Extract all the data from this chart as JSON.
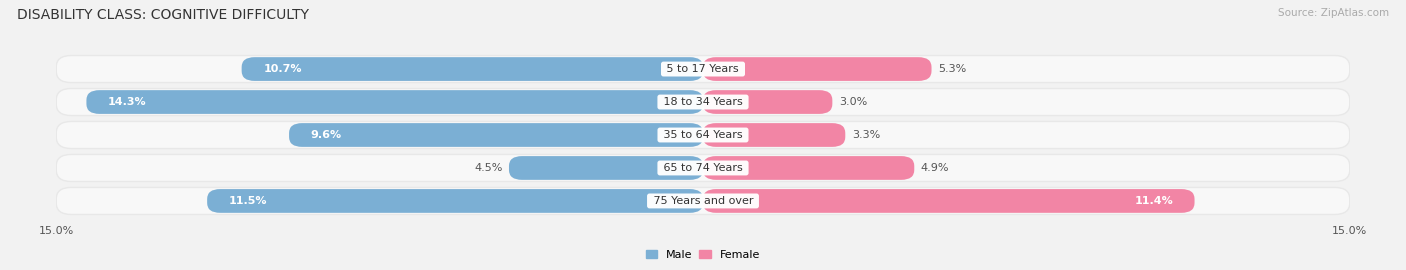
{
  "title": "DISABILITY CLASS: COGNITIVE DIFFICULTY",
  "source": "Source: ZipAtlas.com",
  "categories": [
    "5 to 17 Years",
    "18 to 34 Years",
    "35 to 64 Years",
    "65 to 74 Years",
    "75 Years and over"
  ],
  "male_values": [
    10.7,
    14.3,
    9.6,
    4.5,
    11.5
  ],
  "female_values": [
    5.3,
    3.0,
    3.3,
    4.9,
    11.4
  ],
  "male_color": "#7bafd4",
  "female_color": "#f285a5",
  "max_val": 15.0,
  "bg_color": "#f2f2f2",
  "row_bg_color": "#e8e8e8",
  "row_bg_inner": "#f8f8f8",
  "title_fontsize": 10,
  "label_fontsize": 8,
  "value_fontsize": 8,
  "tick_fontsize": 8,
  "source_fontsize": 7.5
}
